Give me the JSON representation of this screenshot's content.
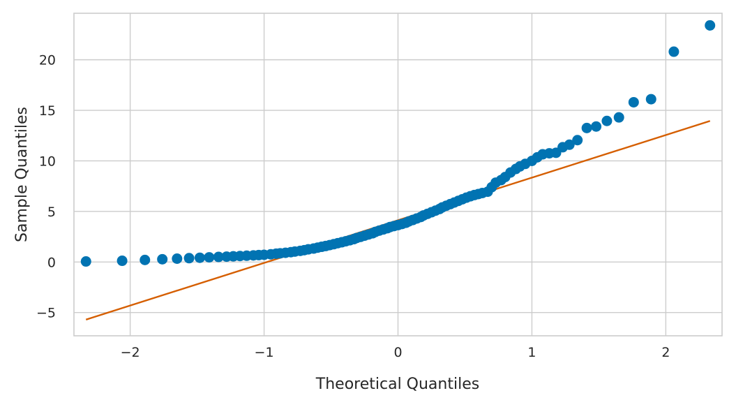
{
  "chart_data": {
    "type": "scatter",
    "title": "",
    "xlabel": "Theoretical Quantiles",
    "ylabel": "Sample Quantiles",
    "xlim": [
      -2.42,
      2.42
    ],
    "ylim": [
      -7.3,
      24.6
    ],
    "grid": true,
    "xticks": [
      {
        "value": -2,
        "label": "−2"
      },
      {
        "value": -1,
        "label": "−1"
      },
      {
        "value": 0,
        "label": "0"
      },
      {
        "value": 1,
        "label": "1"
      },
      {
        "value": 2,
        "label": "2"
      }
    ],
    "yticks": [
      {
        "value": -5,
        "label": "−5"
      },
      {
        "value": 0,
        "label": "0"
      },
      {
        "value": 5,
        "label": "5"
      },
      {
        "value": 10,
        "label": "10"
      },
      {
        "value": 15,
        "label": "15"
      },
      {
        "value": 20,
        "label": "20"
      }
    ],
    "series": [
      {
        "name": "sample",
        "color": "#0173b2",
        "points": [
          [
            -2.33,
            0.05
          ],
          [
            -2.06,
            0.12
          ],
          [
            -1.89,
            0.2
          ],
          [
            -1.76,
            0.27
          ],
          [
            -1.65,
            0.33
          ],
          [
            -1.56,
            0.38
          ],
          [
            -1.48,
            0.42
          ],
          [
            -1.41,
            0.46
          ],
          [
            -1.34,
            0.5
          ],
          [
            -1.28,
            0.53
          ],
          [
            -1.23,
            0.56
          ],
          [
            -1.18,
            0.59
          ],
          [
            -1.13,
            0.62
          ],
          [
            -1.08,
            0.65
          ],
          [
            -1.04,
            0.68
          ],
          [
            -1.0,
            0.71
          ],
          [
            -0.95,
            0.76
          ],
          [
            -0.91,
            0.82
          ],
          [
            -0.88,
            0.86
          ],
          [
            -0.84,
            0.91
          ],
          [
            -0.8,
            0.97
          ],
          [
            -0.77,
            1.03
          ],
          [
            -0.73,
            1.1
          ],
          [
            -0.7,
            1.17
          ],
          [
            -0.67,
            1.25
          ],
          [
            -0.63,
            1.33
          ],
          [
            -0.6,
            1.42
          ],
          [
            -0.57,
            1.5
          ],
          [
            -0.54,
            1.58
          ],
          [
            -0.51,
            1.67
          ],
          [
            -0.48,
            1.76
          ],
          [
            -0.45,
            1.86
          ],
          [
            -0.42,
            1.95
          ],
          [
            -0.39,
            2.05
          ],
          [
            -0.36,
            2.15
          ],
          [
            -0.33,
            2.26
          ],
          [
            -0.31,
            2.37
          ],
          [
            -0.28,
            2.48
          ],
          [
            -0.25,
            2.6
          ],
          [
            -0.22,
            2.72
          ],
          [
            -0.19,
            2.84
          ],
          [
            -0.17,
            2.97
          ],
          [
            -0.14,
            3.1
          ],
          [
            -0.11,
            3.22
          ],
          [
            -0.08,
            3.34
          ],
          [
            -0.06,
            3.45
          ],
          [
            -0.03,
            3.55
          ],
          [
            0.0,
            3.65
          ],
          [
            0.03,
            3.76
          ],
          [
            0.06,
            3.88
          ],
          [
            0.08,
            4.01
          ],
          [
            0.11,
            4.15
          ],
          [
            0.14,
            4.3
          ],
          [
            0.17,
            4.45
          ],
          [
            0.19,
            4.6
          ],
          [
            0.22,
            4.76
          ],
          [
            0.25,
            4.92
          ],
          [
            0.28,
            5.08
          ],
          [
            0.31,
            5.24
          ],
          [
            0.33,
            5.4
          ],
          [
            0.36,
            5.56
          ],
          [
            0.39,
            5.72
          ],
          [
            0.42,
            5.88
          ],
          [
            0.45,
            6.04
          ],
          [
            0.48,
            6.2
          ],
          [
            0.51,
            6.36
          ],
          [
            0.54,
            6.5
          ],
          [
            0.57,
            6.62
          ],
          [
            0.6,
            6.72
          ],
          [
            0.63,
            6.82
          ],
          [
            0.67,
            6.95
          ],
          [
            0.7,
            7.4
          ],
          [
            0.73,
            7.85
          ],
          [
            0.77,
            8.1
          ],
          [
            0.8,
            8.4
          ],
          [
            0.84,
            8.85
          ],
          [
            0.88,
            9.2
          ],
          [
            0.91,
            9.45
          ],
          [
            0.95,
            9.7
          ],
          [
            1.0,
            10.0
          ],
          [
            1.04,
            10.35
          ],
          [
            1.08,
            10.65
          ],
          [
            1.13,
            10.75
          ],
          [
            1.18,
            10.8
          ],
          [
            1.23,
            11.35
          ],
          [
            1.28,
            11.6
          ],
          [
            1.34,
            12.05
          ],
          [
            1.41,
            13.25
          ],
          [
            1.48,
            13.4
          ],
          [
            1.56,
            13.95
          ],
          [
            1.65,
            14.3
          ],
          [
            1.76,
            15.8
          ],
          [
            1.89,
            16.1
          ],
          [
            2.06,
            20.8
          ],
          [
            2.33,
            23.4
          ]
        ]
      }
    ],
    "reference_line": {
      "name": "fit",
      "color": "#d55e00",
      "from": [
        -2.33,
        -5.7
      ],
      "to": [
        2.33,
        13.95
      ]
    }
  }
}
